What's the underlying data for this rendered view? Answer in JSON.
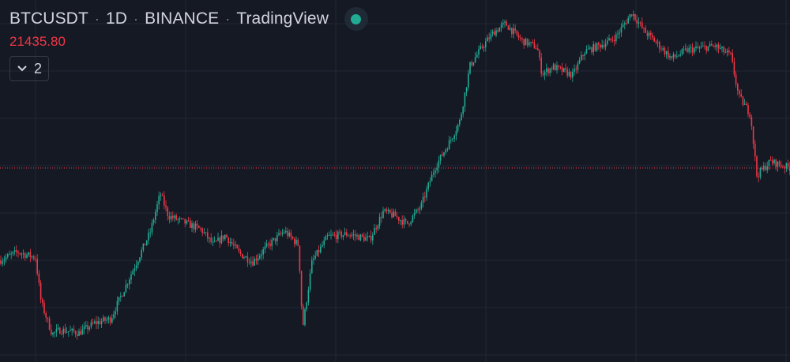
{
  "legend": {
    "symbol": "BTCUSDT",
    "interval": "1D",
    "exchange": "BINANCE",
    "publisher": "TradingView",
    "status_icon": "market-open-dot"
  },
  "last_price": "21435.80",
  "indicators_toggle": {
    "icon": "chevron-down-icon",
    "count": "2"
  },
  "colors": {
    "background": "#151924",
    "grid": "#232733",
    "up": "#22ab94",
    "down": "#f23645",
    "price_line": "#f23645",
    "text": "#d1d4dc"
  },
  "chart_data": {
    "type": "candlestick",
    "symbol": "BTCUSDT",
    "interval": "1D",
    "exchange": "BINANCE",
    "last_price": 21435.8,
    "ylim": [
      7500,
      33500
    ],
    "grid": true,
    "price_line": 21435.8,
    "path": [
      [
        0,
        14800
      ],
      [
        22,
        15400
      ],
      [
        45,
        15000
      ],
      [
        52,
        11800
      ],
      [
        66,
        9500
      ],
      [
        76,
        9800
      ],
      [
        100,
        9600
      ],
      [
        120,
        10300
      ],
      [
        140,
        10600
      ],
      [
        165,
        13700
      ],
      [
        190,
        16800
      ],
      [
        203,
        19600
      ],
      [
        213,
        18000
      ],
      [
        230,
        17600
      ],
      [
        255,
        17000
      ],
      [
        270,
        15900
      ],
      [
        285,
        16600
      ],
      [
        303,
        15300
      ],
      [
        320,
        14700
      ],
      [
        340,
        15900
      ],
      [
        360,
        16900
      ],
      [
        378,
        15900
      ],
      [
        383,
        9900
      ],
      [
        395,
        14700
      ],
      [
        415,
        16500
      ],
      [
        440,
        16700
      ],
      [
        468,
        16300
      ],
      [
        485,
        18300
      ],
      [
        500,
        18000
      ],
      [
        515,
        17400
      ],
      [
        533,
        18700
      ],
      [
        550,
        21400
      ],
      [
        570,
        23400
      ],
      [
        582,
        24800
      ],
      [
        595,
        28800
      ],
      [
        610,
        30100
      ],
      [
        625,
        31200
      ],
      [
        640,
        31800
      ],
      [
        660,
        30600
      ],
      [
        680,
        30100
      ],
      [
        686,
        28200
      ],
      [
        700,
        28700
      ],
      [
        725,
        28100
      ],
      [
        740,
        29800
      ],
      [
        770,
        30500
      ],
      [
        780,
        30900
      ],
      [
        800,
        32600
      ],
      [
        815,
        31300
      ],
      [
        828,
        30600
      ],
      [
        850,
        29300
      ],
      [
        870,
        29900
      ],
      [
        905,
        30200
      ],
      [
        925,
        29500
      ],
      [
        935,
        26600
      ],
      [
        950,
        25300
      ],
      [
        958,
        20900
      ],
      [
        975,
        21900
      ],
      [
        1000,
        21435
      ]
    ]
  }
}
